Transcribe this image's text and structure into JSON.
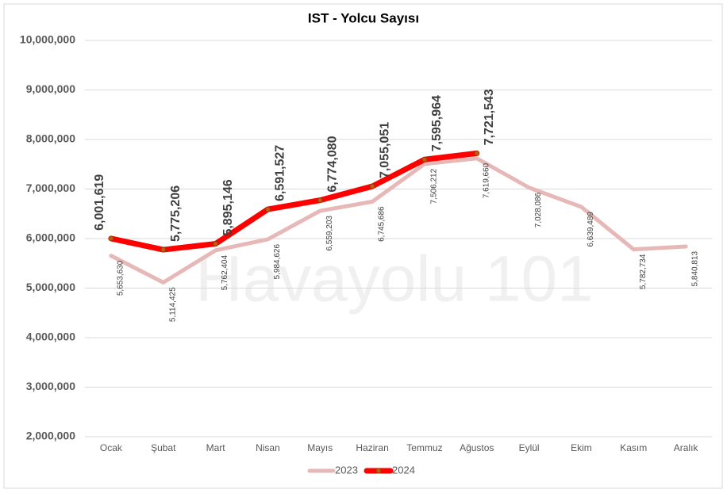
{
  "chart_data": {
    "type": "line",
    "title": "IST - Yolcu Sayısı",
    "watermark": "Havayolu 101",
    "categories": [
      "Ocak",
      "Şubat",
      "Mart",
      "Nisan",
      "Mayıs",
      "Haziran",
      "Temmuz",
      "Ağustos",
      "Eylül",
      "Ekim",
      "Kasım",
      "Aralık"
    ],
    "series": [
      {
        "name": "2023",
        "color": "#e6b8b7",
        "values": [
          5653630,
          5114425,
          5762404,
          5984626,
          6559203,
          6745686,
          7506212,
          7619660,
          7028086,
          6639489,
          5782734,
          5840813
        ],
        "value_labels": [
          "5,653,630",
          "5,114,425",
          "5,762,404",
          "5,984,626",
          "6,559,203",
          "6,745,686",
          "7,506,212",
          "7,619,660",
          "7,028,086",
          "6,639,489",
          "5,782,734",
          "5,840,813"
        ]
      },
      {
        "name": "2024",
        "color": "#ff0000",
        "marker_color": "#c55a11",
        "values": [
          6001619,
          5775206,
          5895146,
          6591527,
          6774080,
          7055051,
          7595964,
          7721543,
          null,
          null,
          null,
          null
        ],
        "value_labels": [
          "6,001,619",
          "5,775,206",
          "5,895,146",
          "6,591,527",
          "6,774,080",
          "7,055,051",
          "7,595,964",
          "7,721,543",
          null,
          null,
          null,
          null
        ]
      }
    ],
    "ylim": [
      2000000,
      10000000
    ],
    "yticks": [
      {
        "value": 2000000,
        "label": "2,000,000"
      },
      {
        "value": 3000000,
        "label": "3,000,000"
      },
      {
        "value": 4000000,
        "label": "4,000,000"
      },
      {
        "value": 5000000,
        "label": "5,000,000"
      },
      {
        "value": 6000000,
        "label": "6,000,000"
      },
      {
        "value": 7000000,
        "label": "7,000,000"
      },
      {
        "value": 8000000,
        "label": "8,000,000"
      },
      {
        "value": 9000000,
        "label": "9,000,000"
      },
      {
        "value": 10000000,
        "label": "10,000,000"
      }
    ],
    "grid": true,
    "legend": "bottom"
  }
}
